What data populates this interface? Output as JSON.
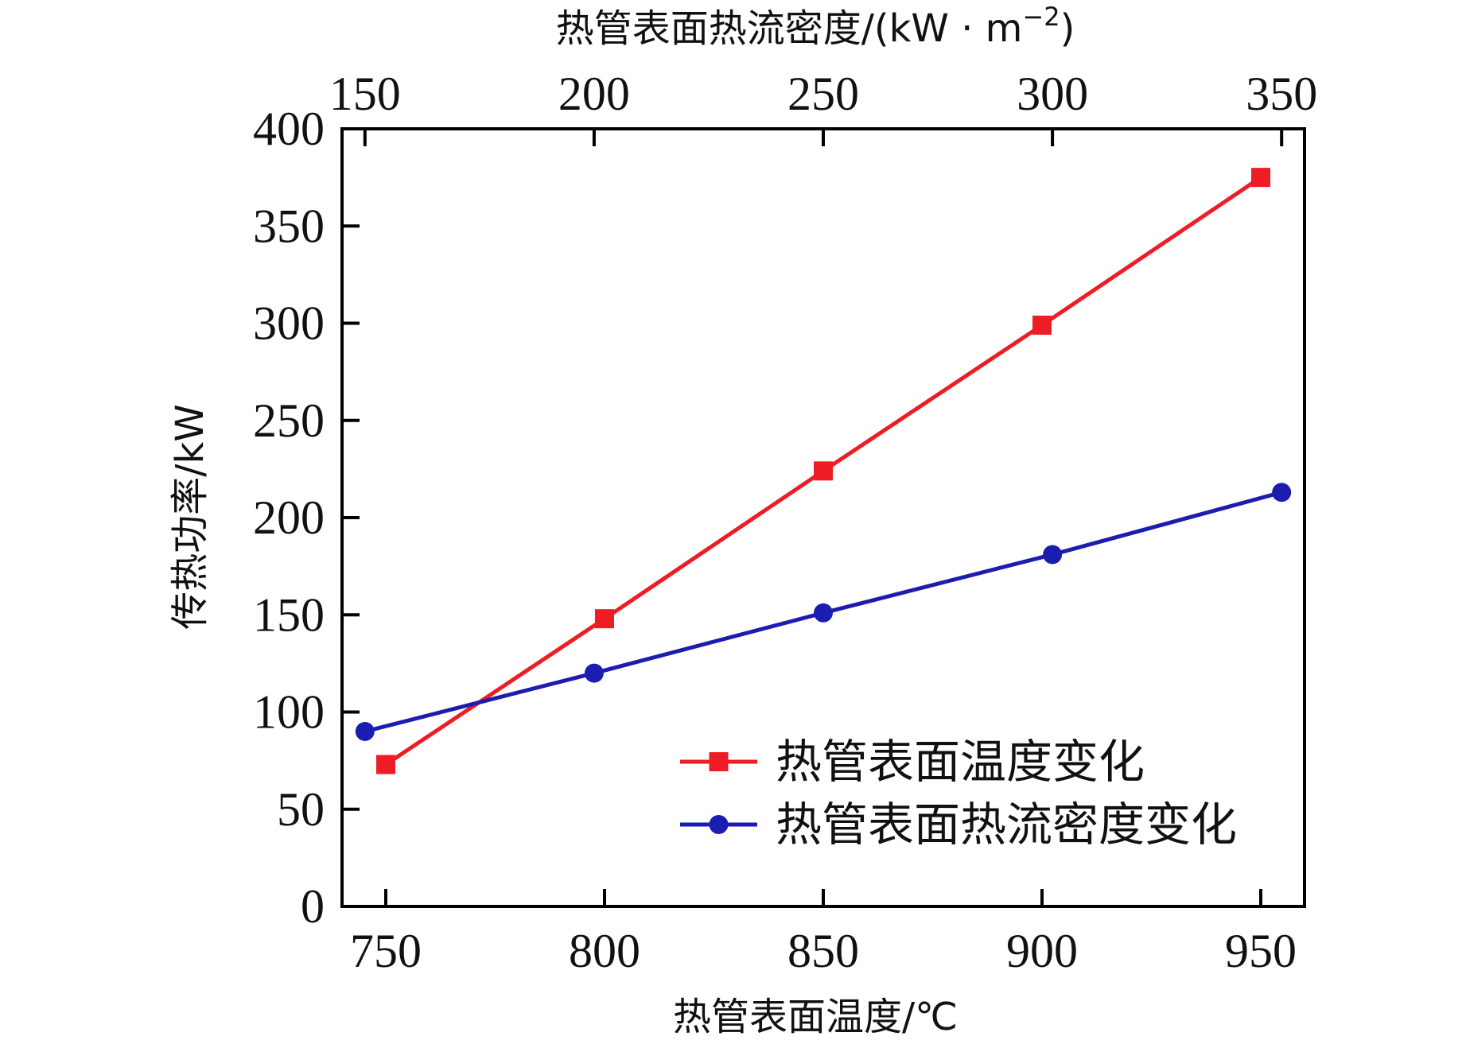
{
  "chart_data": {
    "type": "line",
    "title": "",
    "xlabel": "热管表面温度/℃",
    "x2label_main": "热管表面热流密度/(kW · m",
    "x2label_sup": "−2",
    "x2label_close": ")",
    "ylabel": "传热功率/kW",
    "xlim": [
      740,
      960
    ],
    "x2lim": [
      145,
      355
    ],
    "ylim": [
      0,
      400
    ],
    "xticks": [
      750,
      800,
      850,
      900,
      950
    ],
    "x2ticks": [
      150,
      200,
      250,
      300,
      350
    ],
    "yticks": [
      0,
      50,
      100,
      150,
      200,
      250,
      300,
      350,
      400
    ],
    "grid": false,
    "legend_position": "bottom-right",
    "series": [
      {
        "name": "热管表面温度变化",
        "axis": "bottom",
        "x": [
          750,
          800,
          850,
          900,
          950
        ],
        "y": [
          73,
          148,
          224,
          299,
          375
        ],
        "color": "#ee1c25",
        "marker": "square"
      },
      {
        "name": "热管表面热流密度变化",
        "axis": "top",
        "x": [
          150,
          200,
          250,
          300,
          350
        ],
        "y": [
          90,
          120,
          151,
          181,
          213
        ],
        "color": "#1b1db0",
        "marker": "circle"
      }
    ]
  }
}
